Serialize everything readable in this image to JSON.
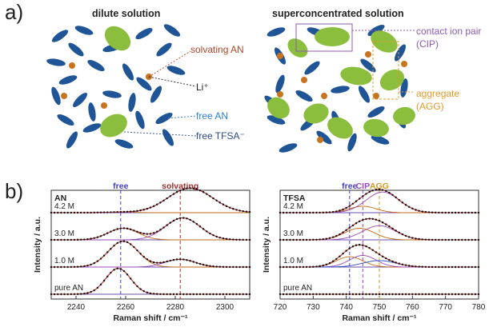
{
  "panel_a": {
    "letter": "a)",
    "dilute_title": "dilute solution",
    "super_title": "superconcentrated solution",
    "labels": {
      "solvating_an": "solvating AN",
      "li": "Li⁺",
      "free_an": "free AN",
      "free_tfsa": "free TFSA⁻",
      "cip_line1": "contact ion pair",
      "cip_line2": "(CIP)",
      "agg_line1": "aggregate",
      "agg_line2": "(AGG)"
    },
    "colors": {
      "solvent": "#1f5597",
      "anion": "#8cbe3e",
      "li": "#c8741f",
      "solvating": "#b5452b",
      "free_an": "#2f7fd6",
      "free_tfsa": "#2c4a8a",
      "cip": "#8c5bb5",
      "agg": "#e39a2d"
    }
  },
  "panel_b": {
    "letter": "b)",
    "ylabel": "Intensity / a.u."
  },
  "chart_data": [
    {
      "type": "line",
      "label": "AN",
      "xlabel": "Raman shift / cm⁻¹",
      "ylabel": "Intensity / a.u.",
      "xlim": [
        2230,
        2310
      ],
      "xticks": [
        2240,
        2260,
        2280,
        2300
      ],
      "ref_lines": [
        {
          "label": "free",
          "x": 2258,
          "color": "#4040c0"
        },
        {
          "label": "solvating",
          "x": 2282,
          "color": "#a03030"
        }
      ],
      "traces": [
        {
          "name": "4.2 M",
          "peaks": [
            {
              "center": 2258,
              "height": 0.02,
              "width": 6
            },
            {
              "center": 2286,
              "height": 0.95,
              "width": 9
            }
          ]
        },
        {
          "name": "3.0 M",
          "peaks": [
            {
              "center": 2259,
              "height": 0.45,
              "width": 6
            },
            {
              "center": 2283,
              "height": 0.85,
              "width": 7
            }
          ]
        },
        {
          "name": "1.0 M",
          "peaks": [
            {
              "center": 2259,
              "height": 1.0,
              "width": 6
            },
            {
              "center": 2282,
              "height": 0.3,
              "width": 6
            }
          ]
        },
        {
          "name": "pure AN",
          "peaks": [
            {
              "center": 2257,
              "height": 1.0,
              "width": 5
            }
          ]
        }
      ]
    },
    {
      "type": "line",
      "label": "TFSA",
      "xlabel": "Raman shift / cm⁻¹",
      "ylabel": "Intensity / a.u.",
      "xlim": [
        720,
        780
      ],
      "xticks": [
        720,
        730,
        740,
        750,
        760,
        770,
        780
      ],
      "ref_lines": [
        {
          "label": "free",
          "x": 741,
          "color": "#4040c0"
        },
        {
          "label": "CIP",
          "x": 745,
          "color": "#9b48b8"
        },
        {
          "label": "AGG",
          "x": 750,
          "color": "#d89a1a"
        }
      ],
      "traces": [
        {
          "name": "4.2 M",
          "peaks": [
            {
              "center": 745,
              "height": 0.25,
              "width": 4
            },
            {
              "center": 751,
              "height": 0.8,
              "width": 5
            }
          ]
        },
        {
          "name": "3.0 M",
          "peaks": [
            {
              "center": 744,
              "height": 0.45,
              "width": 4.5
            },
            {
              "center": 750,
              "height": 0.55,
              "width": 5
            }
          ]
        },
        {
          "name": "1.0 M",
          "peaks": [
            {
              "center": 741,
              "height": 0.4,
              "width": 4
            },
            {
              "center": 745,
              "height": 0.45,
              "width": 4
            },
            {
              "center": 750,
              "height": 0.25,
              "width": 5
            }
          ]
        },
        {
          "name": "pure AN",
          "peaks": []
        }
      ]
    }
  ]
}
